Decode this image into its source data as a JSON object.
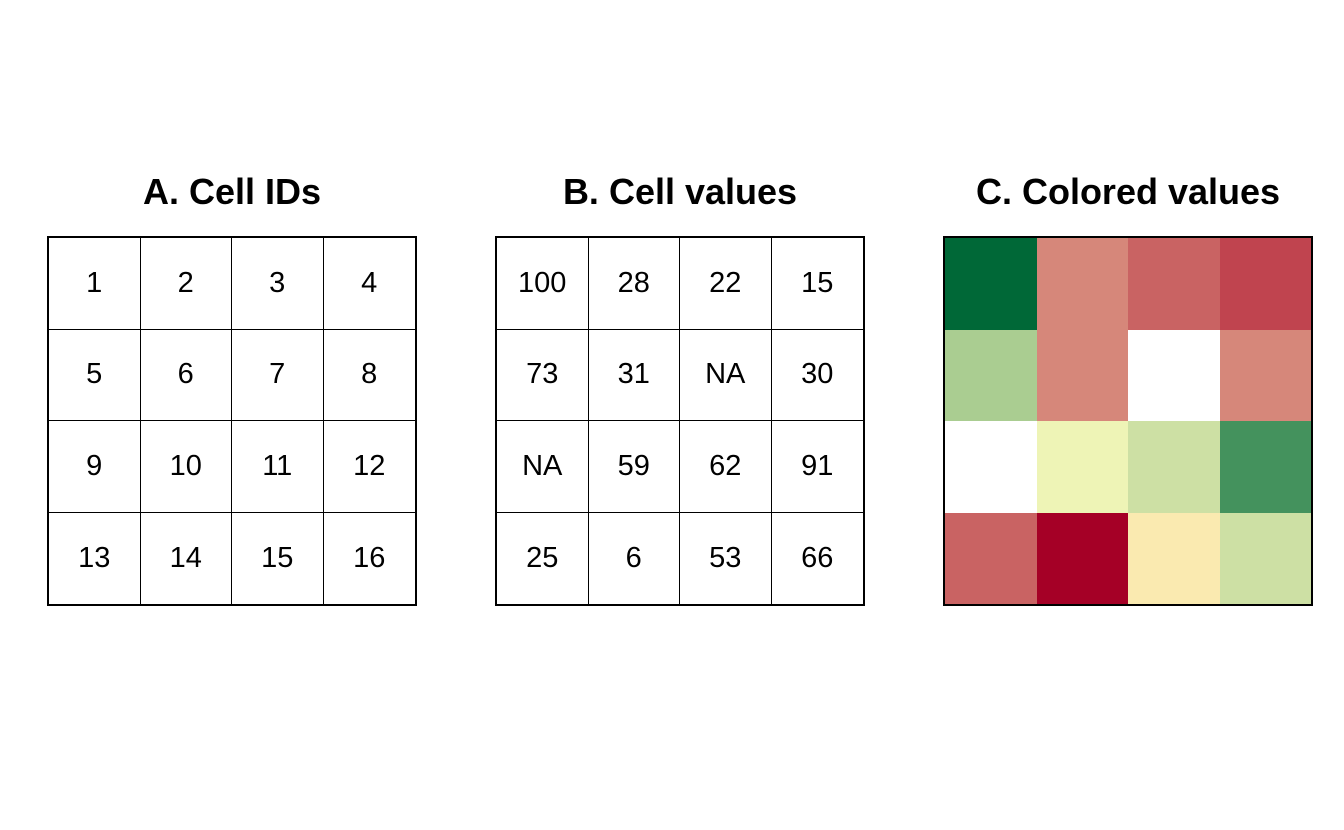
{
  "panels": {
    "ids": {
      "title": "A. Cell IDs"
    },
    "values": {
      "title": "B. Cell values"
    },
    "colored": {
      "title": "C. Colored values"
    }
  },
  "cell_ids": [
    "1",
    "2",
    "3",
    "4",
    "5",
    "6",
    "7",
    "8",
    "9",
    "10",
    "11",
    "12",
    "13",
    "14",
    "15",
    "16"
  ],
  "cell_values": [
    "100",
    "28",
    "22",
    "15",
    "73",
    "31",
    "NA",
    "30",
    "NA",
    "59",
    "62",
    "91",
    "25",
    "6",
    "53",
    "66"
  ],
  "cell_colors": [
    "#006837",
    "#d6877a",
    "#c96363",
    "#c0444f",
    "#aacd91",
    "#d6877a",
    "#ffffff",
    "#d6877a",
    "#ffffff",
    "#eef4b6",
    "#cde0a4",
    "#44925d",
    "#c96363",
    "#a50026",
    "#faeab0",
    "#cde0a4"
  ]
}
